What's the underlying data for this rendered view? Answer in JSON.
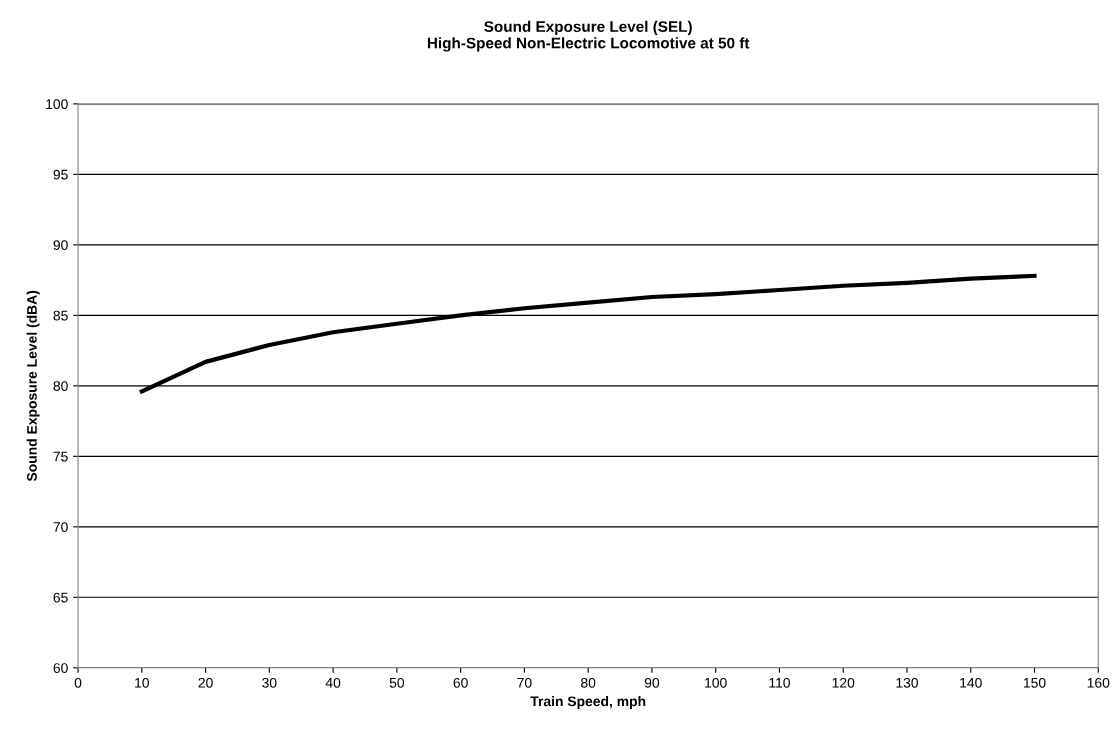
{
  "chart_data": {
    "type": "line",
    "title": "Sound Exposure Level (SEL)\nHigh-Speed Non-Electric Locomotive at 50 ft",
    "xlabel": "Train Speed, mph",
    "ylabel": "Sound Exposure Level (dBA)",
    "x": [
      10,
      20,
      30,
      40,
      50,
      60,
      70,
      80,
      90,
      100,
      110,
      120,
      130,
      140,
      150
    ],
    "series": [
      {
        "color": "#000000",
        "values": [
          79.6,
          81.7,
          82.9,
          83.8,
          84.4,
          85.0,
          85.5,
          85.9,
          86.3,
          86.5,
          86.8,
          87.1,
          87.3,
          87.6,
          87.8
        ]
      }
    ],
    "xlim": [
      0,
      160
    ],
    "xticks": [
      0,
      10,
      20,
      30,
      40,
      50,
      60,
      70,
      80,
      90,
      100,
      110,
      120,
      130,
      140,
      150,
      160
    ],
    "ylim": [
      60,
      100
    ],
    "yticks": [
      60,
      65,
      70,
      75,
      80,
      85,
      90,
      95,
      100
    ],
    "grid": "y",
    "marker": "none",
    "line_style": "solid"
  }
}
